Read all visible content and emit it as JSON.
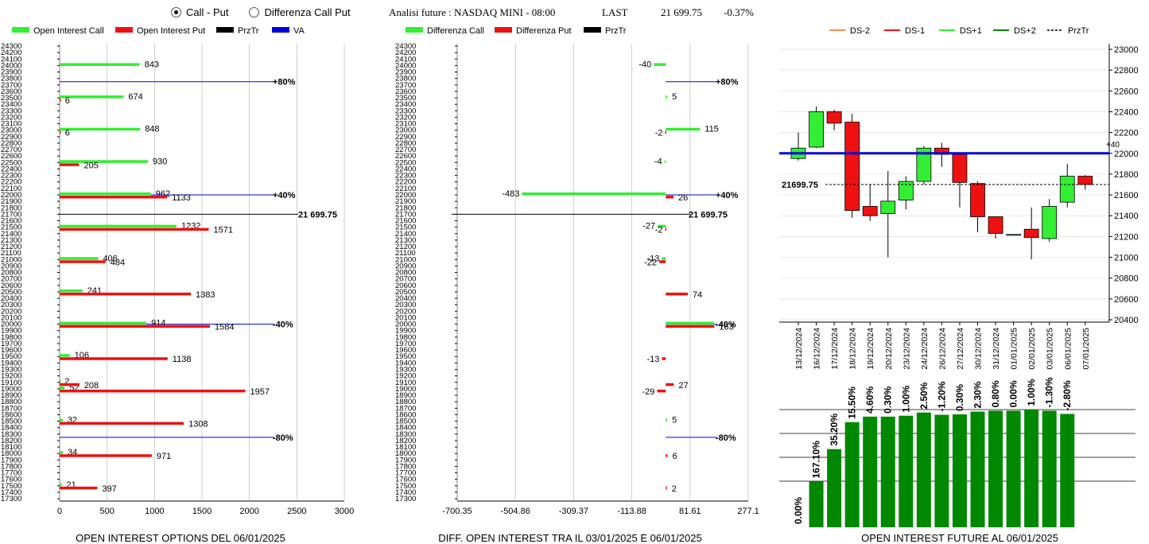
{
  "header": {
    "radio_call_put": "Call - Put",
    "radio_diff": "Differenza Call Put",
    "title": "Analisi future : NASDAQ MINI - 08:00",
    "last_label": "LAST",
    "last_value": "21 699.75",
    "change": "-0.37%"
  },
  "colors": {
    "green": "#33ee33",
    "red": "#ee1111",
    "blue": "#0000dd",
    "dark_green": "#008800"
  },
  "chart_data": [
    {
      "type": "bar",
      "orientation": "horizontal",
      "title": "OPEN INTEREST OPTIONS DEL 06/01/2025",
      "legend": [
        "Open Interest Call",
        "Open Interest Put",
        "PrzTr",
        "VA"
      ],
      "legend_placement": "top",
      "y_ticks": [
        24300,
        24200,
        24100,
        24000,
        23900,
        23800,
        23700,
        23600,
        23500,
        23400,
        23300,
        23200,
        23100,
        23000,
        22900,
        22800,
        22700,
        22600,
        22500,
        22400,
        22300,
        22200,
        22100,
        22000,
        21900,
        21800,
        21700,
        21600,
        21500,
        21400,
        21300,
        21200,
        21100,
        21000,
        20900,
        20800,
        20700,
        20600,
        20500,
        20400,
        20300,
        20200,
        20100,
        20000,
        19900,
        19800,
        19700,
        19600,
        19500,
        19400,
        19300,
        19200,
        19100,
        19000,
        18900,
        18800,
        18700,
        18600,
        18500,
        18400,
        18300,
        18200,
        18100,
        18000,
        17900,
        17800,
        17700,
        17600,
        17500,
        17400,
        17300
      ],
      "x_ticks": [
        "0",
        "500",
        "1000",
        "1500",
        "2000",
        "2500",
        "3000"
      ],
      "xlim": [
        0,
        3000
      ],
      "strikes": [
        {
          "strike": 24000,
          "call": 843,
          "put": null
        },
        {
          "strike": 23500,
          "call": 674,
          "put": 6
        },
        {
          "strike": 23000,
          "call": 848,
          "put": 6
        },
        {
          "strike": 22500,
          "call": 930,
          "put": 205
        },
        {
          "strike": 22000,
          "call": 962,
          "put": 1133
        },
        {
          "strike": 21500,
          "call": 1232,
          "put": 1571
        },
        {
          "strike": 21000,
          "call": 406,
          "put": 484
        },
        {
          "strike": 20500,
          "call": 241,
          "put": 1383
        },
        {
          "strike": 20000,
          "call": 914,
          "put": 1584
        },
        {
          "strike": 19500,
          "call": 106,
          "put": 1138
        },
        {
          "strike": 19000,
          "call": 52,
          "put": 1957
        },
        {
          "strike": 19100,
          "call": 2,
          "put": 208
        },
        {
          "strike": 18500,
          "call": 32,
          "put": 1308
        },
        {
          "strike": 18000,
          "call": 34,
          "put": 971
        },
        {
          "strike": 17500,
          "call": 21,
          "put": 397
        }
      ],
      "va_lines": [
        {
          "level": 23750,
          "label": "+80%"
        },
        {
          "level": 22000,
          "label": "+40%"
        },
        {
          "level": 20000,
          "label": "-40%"
        },
        {
          "level": 18250,
          "label": "-80%"
        }
      ],
      "last_price": {
        "level": 21699.75,
        "label": "21 699.75"
      }
    },
    {
      "type": "bar",
      "orientation": "horizontal",
      "title": "DIFF. OPEN INTEREST TRA IL 03/01/2025 E 06/01/2025",
      "legend": [
        "Differenza Call",
        "Differenza Put",
        "PrzTr"
      ],
      "legend_placement": "top",
      "x_ticks": [
        "-700.35",
        "-504.86",
        "-309.37",
        "-113.88",
        "81.61",
        "277.1"
      ],
      "xlim": [
        -700.35,
        277.1
      ],
      "strikes": [
        {
          "strike": 24000,
          "call": -40,
          "put": null,
          "call_label": "-40"
        },
        {
          "strike": 23500,
          "call": 5,
          "put": null,
          "call_label": "5"
        },
        {
          "strike": 23000,
          "call": 115,
          "put": -2,
          "call_label": "115",
          "put_label": "-2"
        },
        {
          "strike": 22500,
          "call": -4,
          "put": null,
          "call_label": "-4"
        },
        {
          "strike": 22000,
          "call": -483,
          "put": 26,
          "call_label": "-483",
          "put_label": "26"
        },
        {
          "strike": 21500,
          "call": -27,
          "put": -2,
          "call_label": "-27",
          "put_label": "-2"
        },
        {
          "strike": 21000,
          "call": -13,
          "put": -22,
          "call_label": "-13",
          "put_label": "-22"
        },
        {
          "strike": 20500,
          "call": null,
          "put": 74,
          "put_label": "74"
        },
        {
          "strike": 20000,
          "call": 163,
          "put": 163,
          "put_label": "163"
        },
        {
          "strike": 19500,
          "call": null,
          "put": -13,
          "put_label": "-13"
        },
        {
          "strike": 19100,
          "call": null,
          "put": 27,
          "put_label": "27"
        },
        {
          "strike": 19000,
          "call": null,
          "put": -29,
          "put_label": "-29"
        },
        {
          "strike": 18500,
          "call": 5,
          "put": null,
          "call_label": "5"
        },
        {
          "strike": 18000,
          "call": null,
          "put": 6,
          "put_label": "6"
        },
        {
          "strike": 17500,
          "call": null,
          "put": 2,
          "put_label": "2"
        }
      ],
      "va_lines": [
        {
          "level": 23750,
          "label": "+80%"
        },
        {
          "level": 22000,
          "label": "+40%"
        },
        {
          "level": 20000,
          "label": "-40%"
        },
        {
          "level": 18250,
          "label": "-80%"
        }
      ],
      "last_price": {
        "level": 21699.75,
        "label": "21 699.75"
      }
    },
    {
      "type": "candlestick",
      "legend": [
        "DS-2",
        "DS-1",
        "DS+1",
        "DS+2",
        "PrzTr"
      ],
      "legend_placement": "top",
      "y_ticks": [
        23000,
        22800,
        22600,
        22400,
        22200,
        22000,
        21800,
        21600,
        21400,
        21200,
        21000,
        20800,
        20600,
        20400
      ],
      "ylim": [
        20400,
        23050
      ],
      "candles": [
        {
          "date": "13/12/2024",
          "open": 21950,
          "high": 22200,
          "low": 21930,
          "close": 22050
        },
        {
          "date": "16/12/2024",
          "open": 22060,
          "high": 22450,
          "low": 22050,
          "close": 22400
        },
        {
          "date": "17/12/2024",
          "open": 22400,
          "high": 22420,
          "low": 22220,
          "close": 22290
        },
        {
          "date": "18/12/2024",
          "open": 22300,
          "high": 22380,
          "low": 21380,
          "close": 21450
        },
        {
          "date": "19/12/2024",
          "open": 21490,
          "high": 21700,
          "low": 21350,
          "close": 21400
        },
        {
          "date": "20/12/2024",
          "open": 21420,
          "high": 21830,
          "low": 21000,
          "close": 21540
        },
        {
          "date": "23/12/2024",
          "open": 21550,
          "high": 21780,
          "low": 21460,
          "close": 21730
        },
        {
          "date": "24/12/2024",
          "open": 21730,
          "high": 22070,
          "low": 21700,
          "close": 22050
        },
        {
          "date": "26/12/2024",
          "open": 22050,
          "high": 22100,
          "low": 21870,
          "close": 21990
        },
        {
          "date": "27/12/2024",
          "open": 21990,
          "high": 21990,
          "low": 21480,
          "close": 21720
        },
        {
          "date": "30/12/2024",
          "open": 21710,
          "high": 21730,
          "low": 21240,
          "close": 21390
        },
        {
          "date": "31/12/2024",
          "open": 21390,
          "high": 21390,
          "low": 21180,
          "close": 21230
        },
        {
          "date": "01/01/2025",
          "open": 21220,
          "high": 21220,
          "low": 21220,
          "close": 21220
        },
        {
          "date": "02/01/2025",
          "open": 21270,
          "high": 21480,
          "low": 20980,
          "close": 21190
        },
        {
          "date": "03/01/2025",
          "open": 21180,
          "high": 21560,
          "low": 21150,
          "close": 21490
        },
        {
          "date": "06/01/2025",
          "open": 21530,
          "high": 21900,
          "low": 21480,
          "close": 21780
        },
        {
          "date": "07/01/2025",
          "open": 21780,
          "high": 21790,
          "low": 21650,
          "close": 21700
        }
      ],
      "blue_line": 22000,
      "blue_line_label": "+40",
      "last_price": {
        "level": 21699.75,
        "label": "21699.75"
      }
    },
    {
      "type": "bar",
      "title": "OPEN INTEREST FUTURE AL 06/01/2025",
      "categories": [
        "13/12/2024",
        "16/12/2024",
        "17/12/2024",
        "18/12/2024",
        "19/12/2024",
        "20/12/2024",
        "23/12/2024",
        "24/12/2024",
        "26/12/2024",
        "27/12/2024",
        "30/12/2024",
        "31/12/2024",
        "01/01/2025",
        "02/01/2025",
        "03/01/2025",
        "06/01/2025",
        "07/01/2025"
      ],
      "values": [
        0,
        1.0,
        1.71,
        2.3,
        2.42,
        2.42,
        2.44,
        2.51,
        2.46,
        2.47,
        2.53,
        2.55,
        2.55,
        2.58,
        2.55,
        2.48,
        null
      ],
      "labels": [
        "0.00%",
        "167.10%",
        "35.20%",
        "15.50%",
        "4.60%",
        "0.30%",
        "1.00%",
        "2.50%",
        "-1.20%",
        "0.30%",
        "2.30%",
        "0.80%",
        "0.00%",
        "1.00%",
        "-1.30%",
        "-2.80%",
        ""
      ]
    }
  ],
  "footer": {
    "title1": "OPEN INTEREST OPTIONS DEL 06/01/2025",
    "title2": "DIFF. OPEN INTEREST TRA IL 03/01/2025 E 06/01/2025",
    "title3": "OPEN INTEREST FUTURE AL 06/01/2025"
  }
}
